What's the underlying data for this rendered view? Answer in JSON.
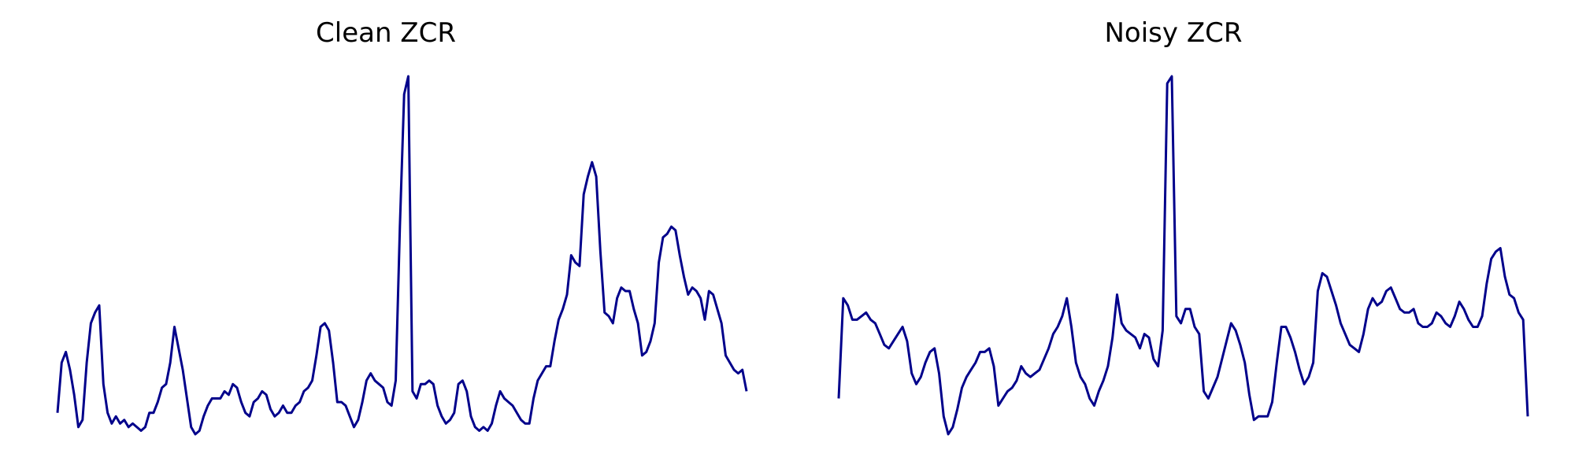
{
  "colors": {
    "line": "#00008b",
    "background": "#ffffff"
  },
  "chart_data": [
    {
      "type": "line",
      "title": "Clean ZCR",
      "axes_visible": false,
      "grid": false,
      "ylim": [
        0,
        100
      ],
      "series": [
        {
          "values": [
            6,
            20,
            23,
            18,
            11,
            2,
            4,
            20,
            31,
            34,
            36,
            14,
            6,
            3,
            5,
            3,
            4,
            2,
            3,
            2,
            1,
            2,
            6,
            6,
            9,
            13,
            14,
            20,
            30,
            24,
            18,
            10,
            2,
            0,
            1,
            5,
            8,
            10,
            10,
            10,
            12,
            11,
            14,
            13,
            9,
            6,
            5,
            9,
            10,
            12,
            11,
            7,
            5,
            6,
            8,
            6,
            6,
            8,
            9,
            12,
            13,
            15,
            22,
            30,
            31,
            29,
            20,
            9,
            9,
            8,
            5,
            2,
            4,
            9,
            15,
            17,
            15,
            14,
            13,
            9,
            8,
            15,
            58,
            95,
            100,
            12,
            10,
            14,
            14,
            15,
            14,
            8,
            5,
            3,
            4,
            6,
            14,
            15,
            12,
            5,
            2,
            1,
            2,
            1,
            3,
            8,
            12,
            10,
            9,
            8,
            6,
            4,
            3,
            3,
            10,
            15,
            17,
            19,
            19,
            26,
            32,
            35,
            39,
            50,
            48,
            47,
            67,
            72,
            76,
            72,
            51,
            34,
            33,
            31,
            38,
            41,
            40,
            40,
            35,
            31,
            22,
            23,
            26,
            31,
            48,
            55,
            56,
            58,
            57,
            50,
            44,
            39,
            41,
            40,
            38,
            32,
            40,
            39,
            35,
            31,
            22,
            20,
            18,
            17,
            18,
            12
          ]
        }
      ]
    },
    {
      "type": "line",
      "title": "Noisy ZCR",
      "axes_visible": false,
      "grid": false,
      "ylim": [
        0,
        100
      ],
      "series": [
        {
          "values": [
            10,
            38,
            36,
            32,
            32,
            33,
            34,
            32,
            31,
            28,
            25,
            24,
            26,
            28,
            30,
            26,
            17,
            14,
            16,
            20,
            23,
            24,
            17,
            5,
            0,
            2,
            7,
            13,
            16,
            18,
            20,
            23,
            23,
            24,
            19,
            8,
            10,
            12,
            13,
            15,
            19,
            17,
            16,
            17,
            18,
            21,
            24,
            28,
            30,
            33,
            38,
            30,
            20,
            16,
            14,
            10,
            8,
            12,
            15,
            19,
            27,
            39,
            31,
            29,
            28,
            27,
            24,
            28,
            27,
            21,
            19,
            29,
            98,
            100,
            33,
            31,
            35,
            35,
            30,
            28,
            12,
            10,
            13,
            16,
            21,
            26,
            31,
            29,
            25,
            20,
            11,
            4,
            5,
            5,
            5,
            9,
            20,
            30,
            30,
            27,
            23,
            18,
            14,
            16,
            20,
            40,
            45,
            44,
            40,
            36,
            31,
            28,
            25,
            24,
            23,
            28,
            35,
            38,
            36,
            37,
            40,
            41,
            38,
            35,
            34,
            34,
            35,
            31,
            30,
            30,
            31,
            34,
            33,
            31,
            30,
            33,
            37,
            35,
            32,
            30,
            30,
            33,
            42,
            49,
            51,
            52,
            44,
            39,
            38,
            34,
            32,
            5
          ]
        }
      ]
    }
  ]
}
